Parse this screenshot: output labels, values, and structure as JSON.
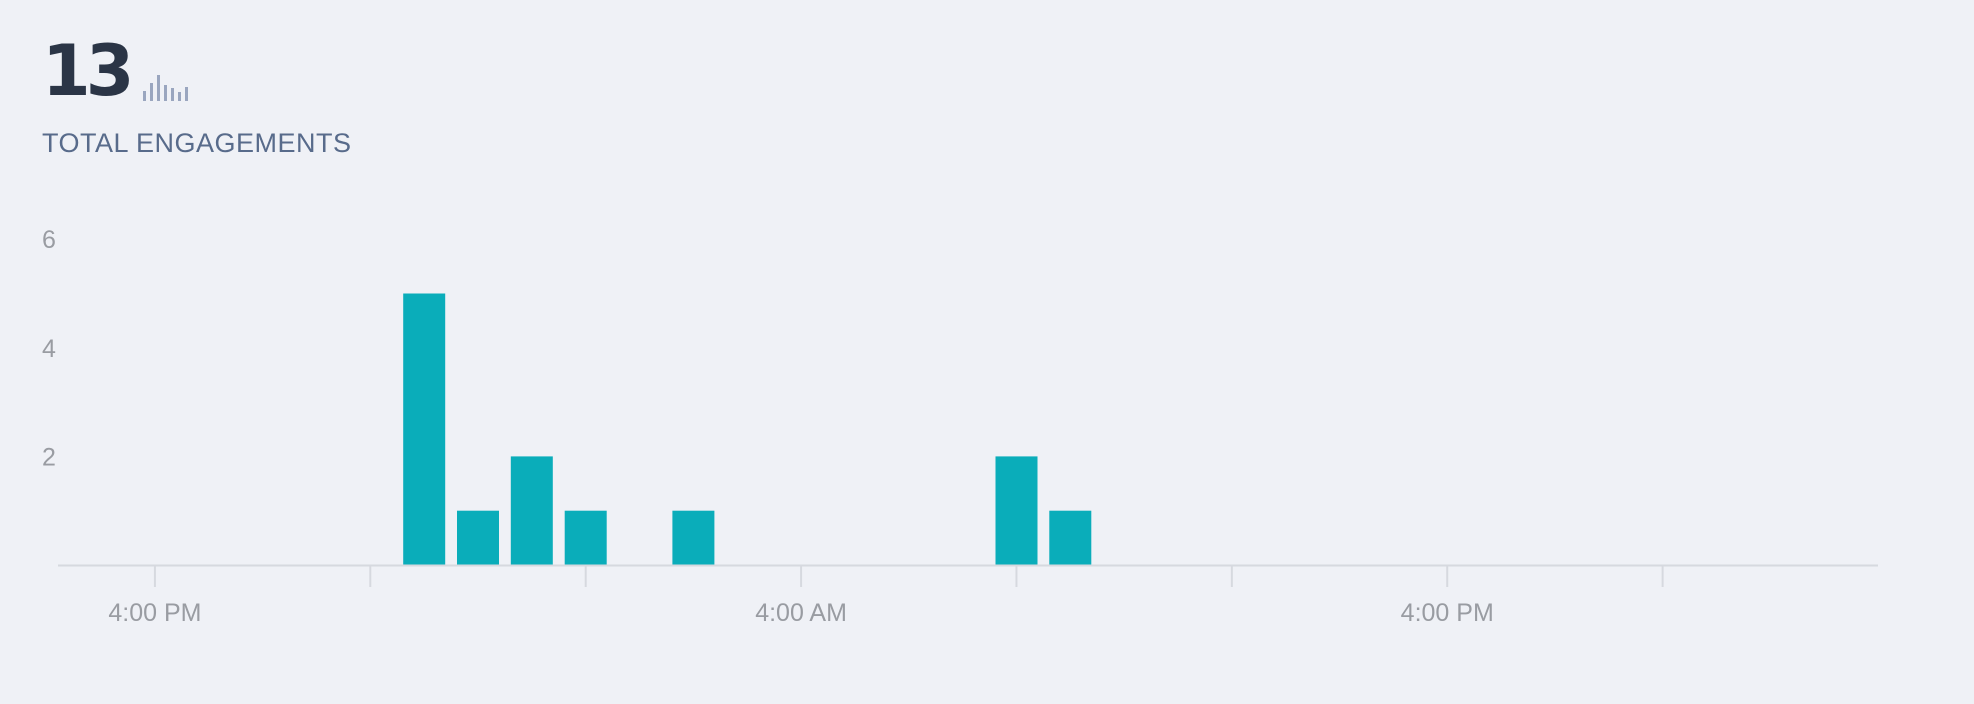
{
  "metric": {
    "value": "13",
    "label": "TOTAL ENGAGEMENTS",
    "icon": "bar-sparkline-icon"
  },
  "colors": {
    "bar": "#0aadba",
    "axis": "#d6d9df",
    "tick_text": "#999ca2",
    "value_text": "#2b3546",
    "label_text": "#586b8b",
    "spark": "#9aa6bf"
  },
  "chart_data": {
    "type": "bar",
    "title": "",
    "xlabel": "",
    "ylabel": "",
    "ylim": [
      0,
      6.5
    ],
    "yticks": [
      2,
      4,
      6
    ],
    "x_range": [
      -0.9,
      16.0
    ],
    "x_tick_marks": [
      0,
      2,
      4,
      6,
      8,
      10,
      12,
      14
    ],
    "x_tick_labels": [
      {
        "x": 0,
        "label": "4:00 PM"
      },
      {
        "x": 6,
        "label": "4:00 AM"
      },
      {
        "x": 12,
        "label": "4:00 PM"
      }
    ],
    "grid": false,
    "legend": "none",
    "series": [
      {
        "bars": [
          {
            "x": 2.5,
            "value": 5
          },
          {
            "x": 3.0,
            "value": 1
          },
          {
            "x": 3.5,
            "value": 2
          },
          {
            "x": 4.0,
            "value": 1
          },
          {
            "x": 5.0,
            "value": 1
          },
          {
            "x": 8.0,
            "value": 2
          },
          {
            "x": 8.5,
            "value": 1
          }
        ]
      }
    ]
  }
}
